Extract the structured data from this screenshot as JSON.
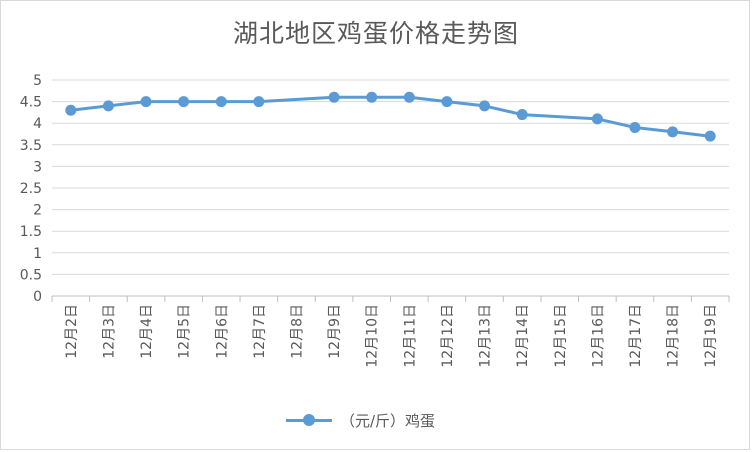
{
  "chart_data": {
    "type": "line",
    "title": "湖北地区鸡蛋价格走势图",
    "categories": [
      "12月2日",
      "12月3日",
      "12月4日",
      "12月5日",
      "12月6日",
      "12月7日",
      "12月8日",
      "12月9日",
      "12月10日",
      "12月11日",
      "12月12日",
      "12月13日",
      "12月14日",
      "12月15日",
      "12月16日",
      "12月17日",
      "12月18日",
      "12月19日"
    ],
    "series": [
      {
        "name": "（元/斤）鸡蛋",
        "color": "#5b9bd5",
        "values": [
          4.3,
          4.4,
          4.5,
          4.5,
          4.5,
          4.5,
          null,
          4.6,
          4.6,
          4.6,
          4.5,
          4.4,
          4.2,
          null,
          4.1,
          3.9,
          3.8,
          3.7
        ]
      }
    ],
    "y_ticks": [
      "0",
      "0.5",
      "1",
      "1.5",
      "2",
      "2.5",
      "3",
      "3.5",
      "4",
      "4.5",
      "5"
    ],
    "ylim": [
      0,
      5
    ],
    "grid": true,
    "legend_position": "bottom",
    "gap_handling": "connect"
  }
}
